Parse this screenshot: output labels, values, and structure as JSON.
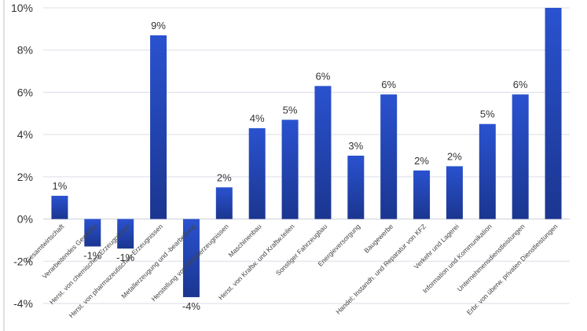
{
  "chart_data": {
    "type": "bar",
    "title": "",
    "xlabel": "",
    "ylabel": "",
    "ylim": [
      -0.04,
      0.1
    ],
    "yticks": [
      -0.04,
      -0.02,
      0,
      0.02,
      0.04,
      0.06,
      0.08,
      0.1
    ],
    "ytick_labels": [
      "-4%",
      "-2%",
      "0%",
      "2%",
      "4%",
      "6%",
      "8%",
      "10%"
    ],
    "grid": true,
    "legend": "none",
    "bar_color_top": "#2a52cf",
    "bar_color_bottom": "#1b3690",
    "categories": [
      "Gesamtwirtschaft",
      "Verarbeitendes Gewerbe",
      "Herst. von chemischen Erzeugnissen",
      "Herst. von pharmazeutischen Erzeugnissen",
      "Metallerzeugung und -bearbeitung",
      "Herstellung von Metallerzeugnissen",
      "Maschinenbau",
      "Herst. von Kraftw. und Kraftw.teilen",
      "Sonstiger Fahrzeugbau",
      "Energieversorgung",
      "Baugewerbe",
      "Handel; Instandh. und Reparatur von KFZ",
      "Verkehr und Lagerei",
      "Information und Kommunikation",
      "Unternehmensdienstleistungen",
      "Erbr. von überw. privaten Dienstleistungen"
    ],
    "values": [
      0.011,
      -0.013,
      -0.014,
      0.087,
      -0.037,
      0.015,
      0.043,
      0.047,
      0.063,
      0.03,
      0.059,
      0.023,
      0.025,
      0.045,
      0.059,
      0.1
    ],
    "data_labels": [
      "1%",
      "-1%",
      "-1%",
      "9%",
      "-4%",
      "2%",
      "4%",
      "5%",
      "6%",
      "3%",
      "6%",
      "2%",
      "2%",
      "5%",
      "6%",
      ""
    ]
  }
}
